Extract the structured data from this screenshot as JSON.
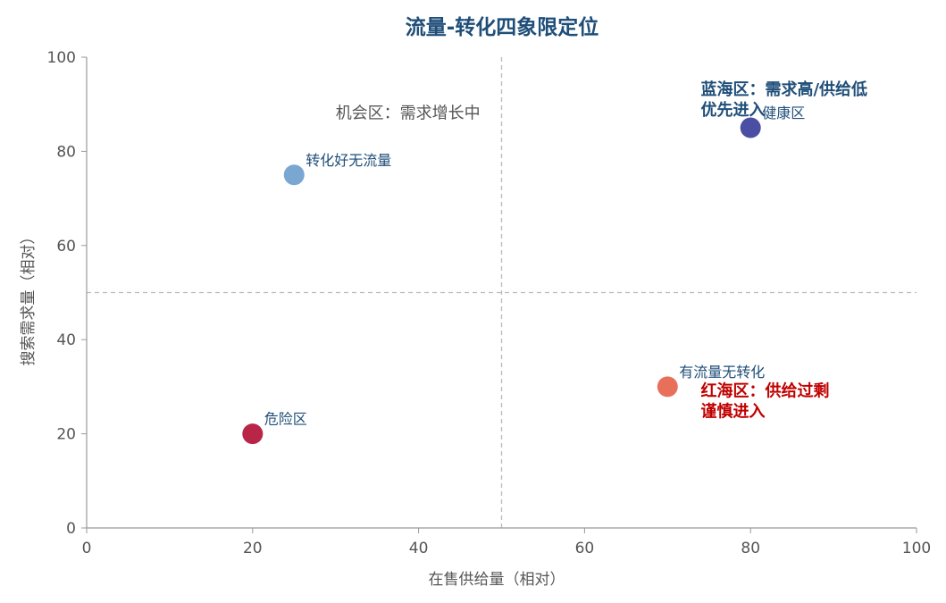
{
  "chart_data": {
    "type": "scatter",
    "title": "流量-转化四象限定位",
    "xlabel": "在售供给量（相对）",
    "ylabel": "搜索需求量（相对）",
    "xlim": [
      0,
      100
    ],
    "ylim": [
      0,
      100
    ],
    "xticks": [
      0,
      20,
      40,
      60,
      80,
      100
    ],
    "yticks": [
      0,
      20,
      40,
      60,
      80,
      100
    ],
    "grid": false,
    "reference_lines": {
      "x": 50,
      "y": 50
    },
    "points": [
      {
        "label": "转化好无流量",
        "x": 25,
        "y": 75,
        "color": "#7aa6d2"
      },
      {
        "label": "健康区",
        "x": 80,
        "y": 85,
        "color": "#4b4fa3"
      },
      {
        "label": "有流量无转化",
        "x": 70,
        "y": 30,
        "color": "#e8705a"
      },
      {
        "label": "危险区",
        "x": 20,
        "y": 20,
        "color": "#b82546"
      }
    ],
    "annotations": [
      {
        "lines": [
          "机会区：需求增长中"
        ],
        "x": 30,
        "y": 87,
        "color": "#555555",
        "bold": false
      },
      {
        "lines": [
          "蓝海区：需求高/供给低",
          "优先进入"
        ],
        "x": 74,
        "y": 92,
        "color": "#1f4e79",
        "bold": true
      },
      {
        "lines": [
          "红海区：供给过剩",
          "谨慎进入"
        ],
        "x": 74,
        "y": 28,
        "color": "#c00000",
        "bold": true
      }
    ]
  }
}
